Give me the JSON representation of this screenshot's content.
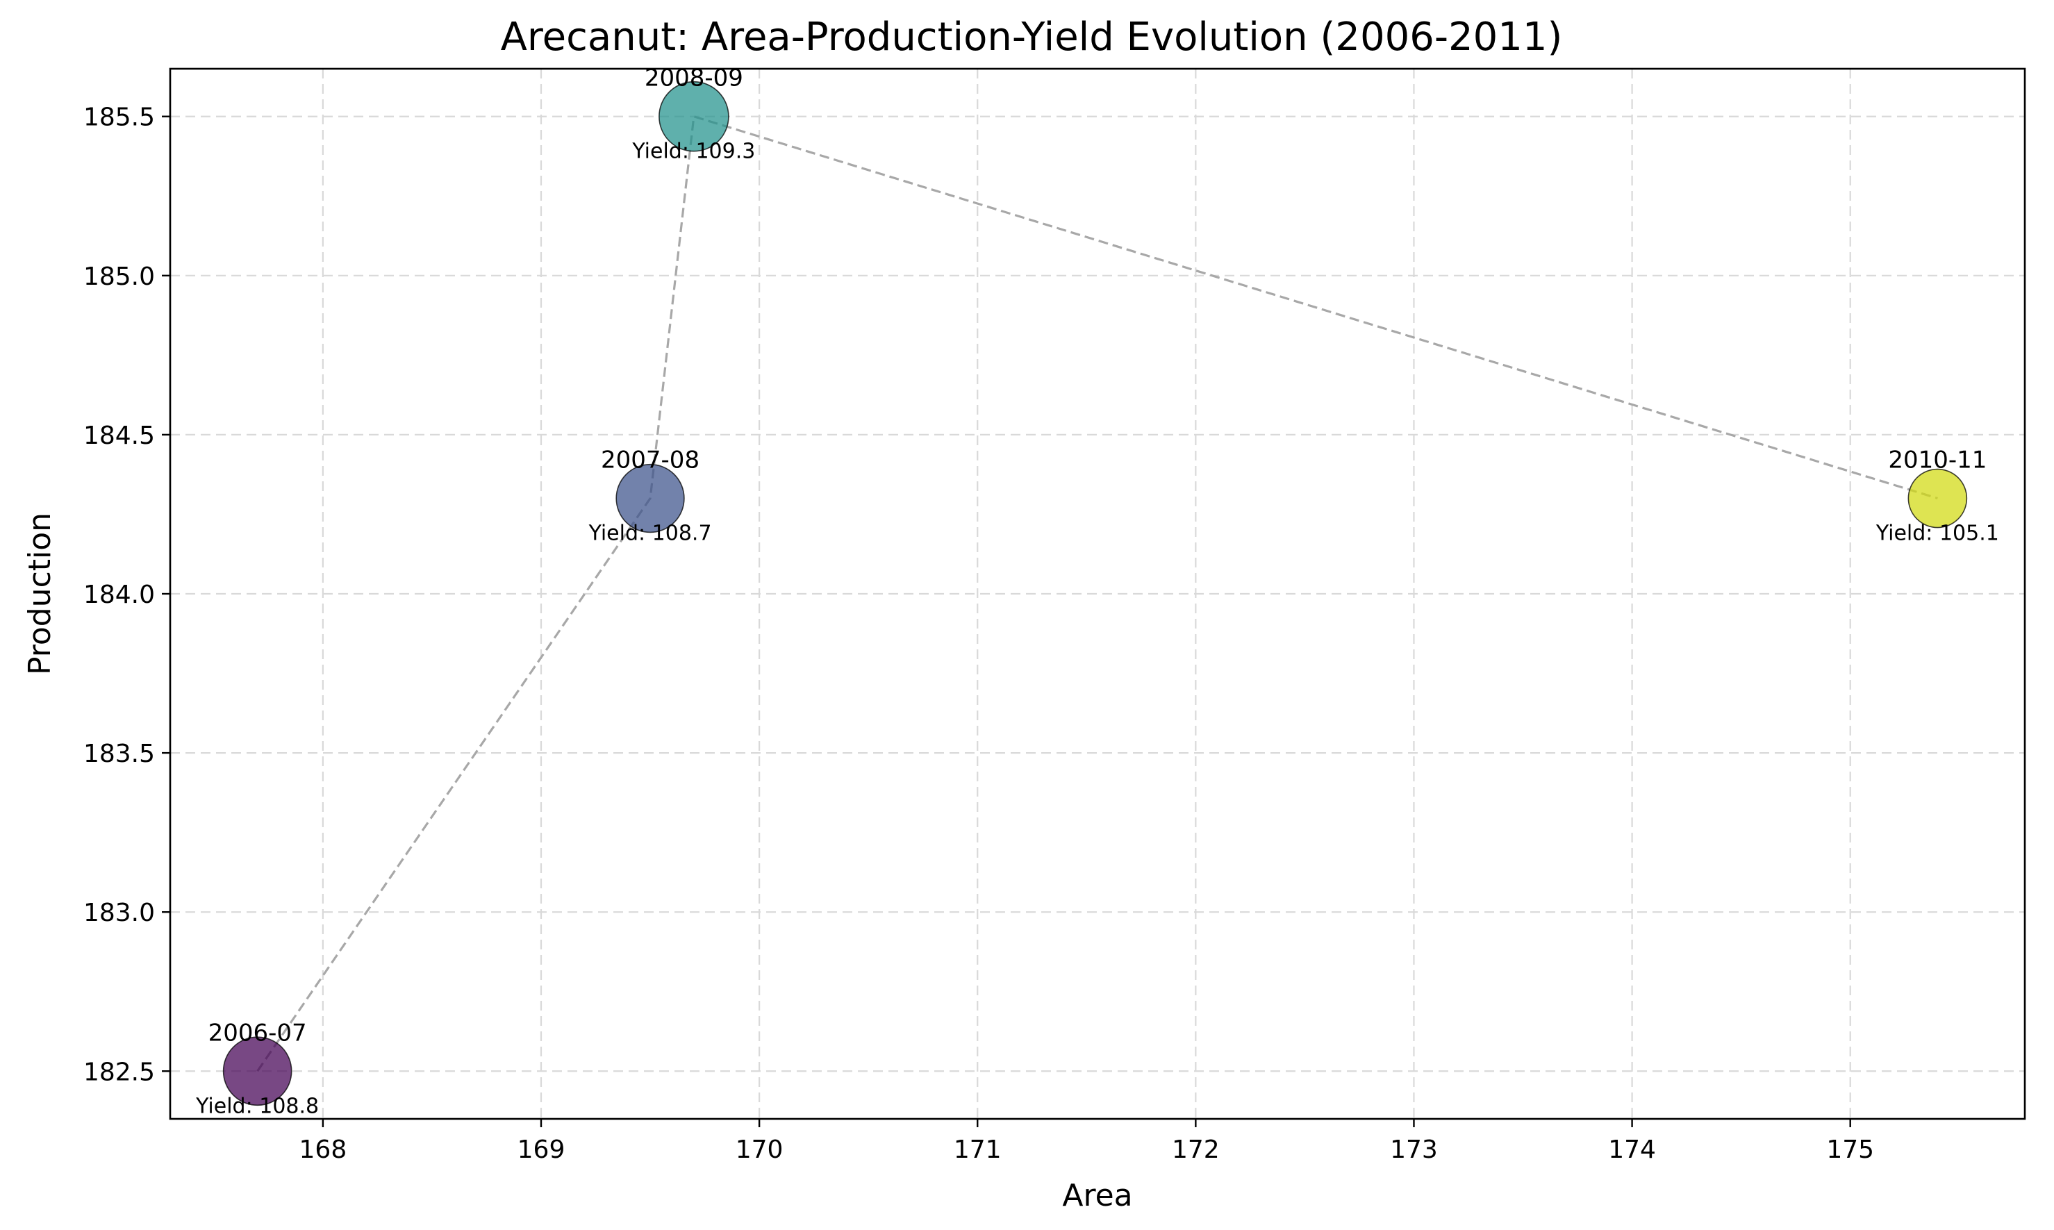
{
  "chart_data": {
    "type": "scatter",
    "title": "Arecanut: Area-Production-Yield Evolution (2006-2011)",
    "xlabel": "Area",
    "ylabel": "Production",
    "xlim": [
      167.3,
      175.8
    ],
    "ylim": [
      182.35,
      185.65
    ],
    "xticks": [
      "168",
      "169",
      "170",
      "171",
      "172",
      "173",
      "174",
      "175"
    ],
    "yticks": [
      "182.5",
      "183.0",
      "183.5",
      "184.0",
      "184.5",
      "185.0",
      "185.5"
    ],
    "grid": true,
    "points": [
      {
        "label": "2006-07",
        "area": 167.7,
        "production": 182.5,
        "yield": 108.8,
        "yield_label": "Yield: 108.8",
        "color": "#440154"
      },
      {
        "label": "2007-08",
        "area": 169.5,
        "production": 184.3,
        "yield": 108.7,
        "yield_label": "Yield: 108.7",
        "color": "#3b528b"
      },
      {
        "label": "2008-09",
        "area": 169.7,
        "production": 185.5,
        "yield": 109.3,
        "yield_label": "Yield: 109.3",
        "color": "#21918c"
      },
      {
        "label": "2010-11",
        "area": 175.4,
        "production": 184.3,
        "yield": 105.1,
        "yield_label": "Yield: 105.1",
        "color": "#d1d90f"
      }
    ]
  }
}
